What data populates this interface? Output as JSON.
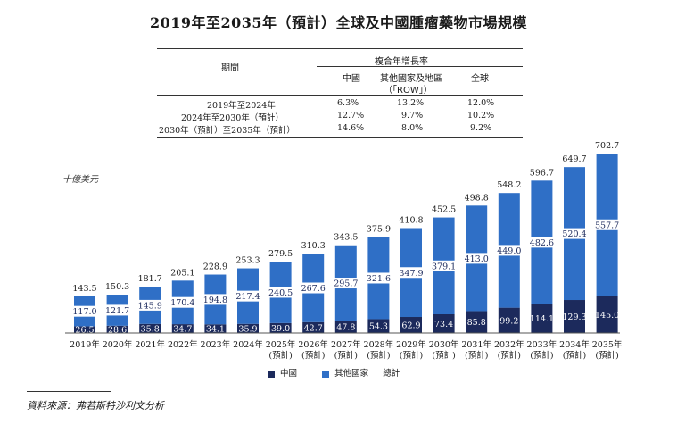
{
  "title": "2019年至2035年（預計）全球及中國腫瘤藥物市場規模",
  "table": {
    "period_header": "期間",
    "cagr_header": "複合年增長率",
    "col_china": "中國",
    "col_row_line1": "其他國家及地區",
    "col_row_line2": "（「ROW」）",
    "col_global": "全球",
    "rows": [
      {
        "period": "2019年至2024年",
        "china": "6.3%",
        "row": "13.2%",
        "global": "12.0%"
      },
      {
        "period": "2024年至2030年（預計）",
        "china": "12.7%",
        "row": "9.7%",
        "global": "10.2%"
      },
      {
        "period": "2030年（預計）至2035年（預計）",
        "china": "14.6%",
        "row": "8.0%",
        "global": "9.2%"
      }
    ]
  },
  "unit_label": "十億美元",
  "legend": {
    "china": "中國",
    "row": "其他國家",
    "total": "總計"
  },
  "source": "資料來源：弗若斯特沙利文分析",
  "colors": {
    "china": "#1c2a5c",
    "row": "#2f6fc6",
    "label_bg": "#ffffff"
  },
  "chart_data": {
    "type": "bar",
    "stacked": true,
    "categories": [
      "2019年",
      "2020年",
      "2021年",
      "2022年",
      "2023年",
      "2024年",
      "2025年",
      "2026年",
      "2027年",
      "2028年",
      "2029年",
      "2030年",
      "2031年",
      "2032年",
      "2033年",
      "2034年",
      "2035年"
    ],
    "category_sublabels": [
      "",
      "",
      "",
      "",
      "",
      "",
      "(預計)",
      "(預計)",
      "(預計)",
      "(預計)",
      "(預計)",
      "(預計)",
      "(預計)",
      "(預計)",
      "(預計)",
      "(預計)",
      "(預計)"
    ],
    "series": [
      {
        "name": "中國",
        "values": [
          26.5,
          28.6,
          35.8,
          34.7,
          34.1,
          35.9,
          39.0,
          42.7,
          47.8,
          54.3,
          62.9,
          73.4,
          85.8,
          99.2,
          114.1,
          129.3,
          145.0
        ]
      },
      {
        "name": "其他國家",
        "values": [
          117.0,
          121.7,
          145.9,
          170.4,
          194.8,
          217.4,
          240.5,
          267.6,
          295.7,
          321.6,
          347.9,
          379.1,
          413.0,
          449.0,
          482.6,
          520.4,
          557.7
        ]
      }
    ],
    "totals": [
      143.5,
      150.3,
      181.7,
      205.1,
      228.9,
      253.3,
      279.5,
      310.3,
      343.5,
      375.9,
      410.8,
      452.5,
      498.8,
      548.2,
      596.7,
      649.7,
      702.7
    ],
    "ylabel": "十億美元",
    "ylim": [
      0,
      702.7
    ],
    "grid": false,
    "legend_position": "bottom"
  }
}
